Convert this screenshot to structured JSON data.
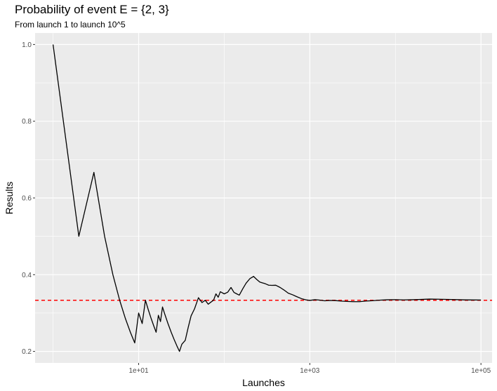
{
  "chart_data": {
    "type": "line",
    "title": "Probability of event E = {2, 3}",
    "subtitle": "From launch 1 to launch 10^5",
    "xlabel": "Launches",
    "ylabel": "Results",
    "x_scale": "log10",
    "xlim": [
      1,
      100000
    ],
    "ylim": [
      0.17,
      1.03
    ],
    "x_ticks": [
      {
        "value": 10,
        "label": "1e+01"
      },
      {
        "value": 1000,
        "label": "1e+03"
      },
      {
        "value": 100000,
        "label": "1e+05"
      }
    ],
    "y_ticks": [
      {
        "value": 0.2,
        "label": "0.2"
      },
      {
        "value": 0.4,
        "label": "0.4"
      },
      {
        "value": 0.6,
        "label": "0.6"
      },
      {
        "value": 0.8,
        "label": "0.8"
      },
      {
        "value": 1.0,
        "label": "1.0"
      }
    ],
    "grid": true,
    "reference_line": {
      "y": 0.3333,
      "style": "dashed",
      "color": "#ff0000"
    },
    "series": [
      {
        "color": "#000000",
        "x": [
          1,
          2,
          3,
          4,
          5,
          6,
          7,
          8,
          9,
          10,
          11,
          12,
          13,
          14,
          15,
          16,
          17,
          18,
          19,
          20,
          22,
          24,
          26,
          28,
          30,
          32,
          35,
          38,
          41,
          45,
          50,
          55,
          60,
          65,
          70,
          75,
          80,
          85,
          90,
          100,
          110,
          120,
          130,
          140,
          150,
          165,
          180,
          200,
          220,
          240,
          260,
          280,
          300,
          330,
          360,
          400,
          450,
          500,
          560,
          630,
          700,
          800,
          900,
          1000,
          1150,
          1300,
          1500,
          1700,
          2000,
          2300,
          2700,
          3200,
          3800,
          4500,
          5400,
          6500,
          8000,
          10000,
          12500,
          16000,
          20000,
          25000,
          32000,
          40000,
          50000,
          65000,
          80000,
          100000
        ],
        "y": [
          1.0,
          0.5,
          0.6667,
          0.5,
          0.4,
          0.3333,
          0.2857,
          0.25,
          0.2222,
          0.3,
          0.2727,
          0.3333,
          0.3077,
          0.2857,
          0.2667,
          0.25,
          0.2941,
          0.2778,
          0.3158,
          0.3,
          0.2727,
          0.25,
          0.2308,
          0.2143,
          0.2,
          0.2188,
          0.2286,
          0.2632,
          0.2927,
          0.3111,
          0.34,
          0.3273,
          0.3333,
          0.3231,
          0.3286,
          0.3333,
          0.35,
          0.3412,
          0.3556,
          0.35,
          0.3545,
          0.3667,
          0.3538,
          0.35,
          0.3467,
          0.3636,
          0.3778,
          0.39,
          0.3955,
          0.3875,
          0.3808,
          0.3786,
          0.3767,
          0.3727,
          0.3722,
          0.3725,
          0.3667,
          0.36,
          0.3518,
          0.3476,
          0.3429,
          0.3375,
          0.3344,
          0.333,
          0.3348,
          0.3338,
          0.332,
          0.3329,
          0.3325,
          0.3313,
          0.3304,
          0.3297,
          0.3297,
          0.3313,
          0.3322,
          0.3335,
          0.3346,
          0.3349,
          0.3342,
          0.3348,
          0.3355,
          0.3364,
          0.336,
          0.3356,
          0.335,
          0.3343,
          0.3341,
          0.334
        ]
      }
    ]
  }
}
